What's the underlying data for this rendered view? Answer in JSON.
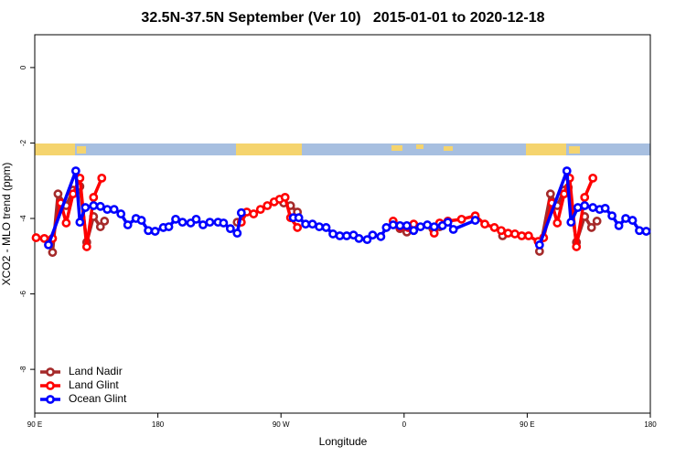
{
  "chart_data": {
    "type": "line",
    "title": "32.5N-37.5N September (Ver 10)   2015-01-01 to 2020-12-18",
    "x_label": "Longitude",
    "y_label": "XCO2 - MLO trend (ppm)",
    "xlim": [
      90,
      540
    ],
    "ylim": [
      -9.16,
      0.87
    ],
    "xticks": [
      {
        "value": 90,
        "label": "90 E"
      },
      180,
      {
        "value": 270,
        "label": "90 W"
      },
      {
        "value": 360,
        "label": "0"
      },
      {
        "value": 450,
        "label": "90 E"
      },
      {
        "value": 540,
        "label": "180"
      }
    ],
    "yticks": [
      0,
      -2,
      -4,
      -6,
      -8
    ],
    "legend": "bottom-left",
    "series": [
      {
        "name": "Land Nadir",
        "color": "#a52a2a",
        "x": [
          103,
          107,
          113,
          118,
          123,
          128,
          133,
          138,
          141,
          null,
          238,
          null,
          272,
          277,
          282,
          null,
          357,
          362,
          null,
          381,
          386,
          null,
          432,
          null,
          459,
          467,
          472,
          477,
          480,
          486,
          492,
          497,
          501
        ],
        "values": [
          -4.9,
          -3.35,
          -3.66,
          -3.25,
          -3.15,
          -4.63,
          -3.95,
          -4.22,
          -4.07,
          null,
          -4.1,
          null,
          -3.59,
          -3.66,
          -3.83,
          null,
          -4.27,
          -4.36,
          null,
          -4.27,
          -4.22,
          null,
          -4.46,
          null,
          -4.87,
          -3.35,
          -3.66,
          -3.25,
          -3.18,
          -4.63,
          -3.95,
          -4.24,
          -4.07
        ]
      },
      {
        "name": "Land Glint",
        "color": "#ff0000",
        "x": [
          91,
          97,
          103,
          109,
          113,
          118,
          123,
          128,
          133,
          139,
          null,
          241,
          245,
          250,
          255,
          260,
          265,
          269,
          273,
          277,
          282,
          null,
          352,
          357,
          363,
          367,
          null,
          382,
          386,
          392,
          402,
          412,
          419,
          426,
          431,
          436,
          441,
          446,
          451,
          458,
          462,
          468,
          472,
          477,
          481,
          486,
          492,
          498
        ],
        "values": [
          -4.51,
          -4.53,
          -4.53,
          -3.59,
          -4.12,
          -3.35,
          -2.93,
          -4.75,
          -3.44,
          -2.93,
          null,
          -4.1,
          -3.83,
          -3.88,
          -3.76,
          -3.66,
          -3.56,
          -3.49,
          -3.44,
          -3.98,
          -4.24,
          null,
          -4.07,
          -4.22,
          -4.24,
          -4.15,
          null,
          -4.39,
          -4.12,
          -4.07,
          -4.02,
          -3.93,
          -4.15,
          -4.24,
          -4.32,
          -4.39,
          -4.41,
          -4.46,
          -4.46,
          -4.61,
          -4.51,
          -3.59,
          -4.12,
          -3.35,
          -2.93,
          -4.75,
          -3.44,
          -2.93
        ]
      },
      {
        "name": "Ocean Glint",
        "color": "#0000ff",
        "x": [
          100,
          120,
          123,
          127,
          133,
          138,
          143,
          148,
          153,
          158,
          164,
          168,
          173,
          178,
          184,
          188,
          193,
          198,
          204,
          208,
          213,
          218,
          224,
          228,
          233,
          238,
          241,
          null,
          279,
          283,
          288,
          293,
          298,
          303,
          308,
          313,
          318,
          323,
          327,
          333,
          337,
          343,
          347,
          352,
          357,
          362,
          367,
          372,
          377,
          382,
          388,
          392,
          396,
          412,
          null,
          459,
          479,
          482,
          487,
          492,
          498,
          503,
          507,
          512,
          517,
          522,
          527,
          532,
          537
        ],
        "values": [
          -4.7,
          -2.74,
          -4.1,
          -3.71,
          -3.66,
          -3.68,
          -3.76,
          -3.76,
          -3.88,
          -4.17,
          -4.0,
          -4.05,
          -4.32,
          -4.34,
          -4.24,
          -4.22,
          -4.02,
          -4.1,
          -4.12,
          -4.02,
          -4.17,
          -4.1,
          -4.1,
          -4.12,
          -4.27,
          -4.39,
          -3.85,
          null,
          -3.98,
          -3.98,
          -4.15,
          -4.15,
          -4.22,
          -4.24,
          -4.41,
          -4.46,
          -4.46,
          -4.44,
          -4.53,
          -4.56,
          -4.44,
          -4.48,
          -4.24,
          -4.17,
          -4.19,
          -4.19,
          -4.32,
          -4.22,
          -4.17,
          -4.22,
          -4.19,
          -4.1,
          -4.29,
          -4.05,
          null,
          -4.7,
          -2.74,
          -4.1,
          -3.71,
          -3.66,
          -3.71,
          -3.76,
          -3.73,
          -3.93,
          -4.19,
          -4.0,
          -4.05,
          -4.32,
          -4.34
        ]
      }
    ]
  }
}
